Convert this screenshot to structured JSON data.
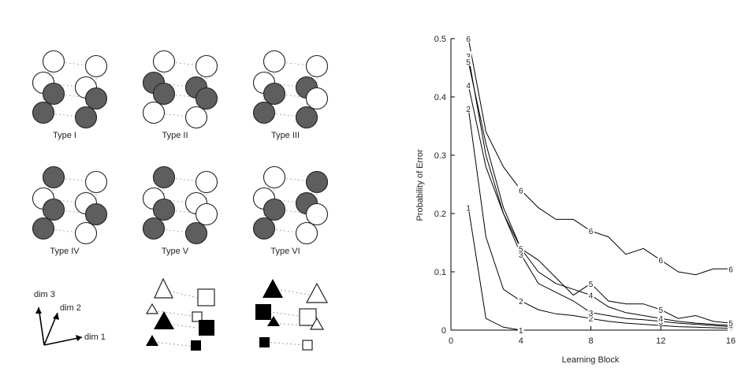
{
  "figure": {
    "type_labels": [
      "Type I",
      "Type II",
      "Type III",
      "Type IV",
      "Type V",
      "Type VI"
    ],
    "type_patterns": [
      [
        0,
        0,
        0,
        0,
        1,
        1,
        1,
        1
      ],
      [
        0,
        0,
        1,
        1,
        1,
        1,
        0,
        0
      ],
      [
        0,
        0,
        0,
        1,
        1,
        0,
        1,
        1
      ],
      [
        1,
        0,
        0,
        0,
        1,
        1,
        1,
        0
      ],
      [
        1,
        0,
        0,
        0,
        1,
        0,
        1,
        1
      ],
      [
        0,
        1,
        0,
        1,
        1,
        0,
        1,
        0
      ]
    ],
    "axes_labels": [
      "dim 1",
      "dim 2",
      "dim 3"
    ],
    "colors": {
      "filled": "#5e5e5e",
      "empty": "#ffffff",
      "stroke": "#222222",
      "solid": "#000000"
    }
  },
  "chart_data": {
    "type": "line",
    "xlabel": "Learning Block",
    "ylabel": "Probability of Error",
    "xlim": [
      0,
      16
    ],
    "ylim": [
      0,
      0.5
    ],
    "xticks": [
      "0",
      "4",
      "8",
      "12",
      "16"
    ],
    "yticks": [
      "0",
      "0.1",
      "0.2",
      "0.3",
      "0.4",
      "0.5"
    ],
    "x": [
      1,
      2,
      3,
      4,
      5,
      6,
      7,
      8,
      9,
      10,
      11,
      12,
      13,
      14,
      15,
      16
    ],
    "series": [
      {
        "name": "1",
        "values": [
          0.21,
          0.02,
          0.005,
          0.0,
          0.0,
          0.0,
          0.0,
          0.0,
          0.0,
          0.0,
          0.0,
          0.0,
          0.0,
          0.0,
          0.0,
          0.0
        ]
      },
      {
        "name": "2",
        "values": [
          0.38,
          0.16,
          0.07,
          0.05,
          0.035,
          0.028,
          0.025,
          0.02,
          0.015,
          0.012,
          0.01,
          0.008,
          0.006,
          0.005,
          0.004,
          0.003
        ]
      },
      {
        "name": "3",
        "values": [
          0.47,
          0.3,
          0.2,
          0.13,
          0.08,
          0.065,
          0.05,
          0.03,
          0.025,
          0.02,
          0.018,
          0.015,
          0.012,
          0.01,
          0.008,
          0.006
        ]
      },
      {
        "name": "4",
        "values": [
          0.42,
          0.28,
          0.2,
          0.14,
          0.1,
          0.08,
          0.07,
          0.06,
          0.04,
          0.03,
          0.025,
          0.02,
          0.015,
          0.012,
          0.01,
          0.008
        ]
      },
      {
        "name": "5",
        "values": [
          0.46,
          0.32,
          0.21,
          0.14,
          0.12,
          0.09,
          0.06,
          0.08,
          0.05,
          0.045,
          0.045,
          0.035,
          0.02,
          0.025,
          0.015,
          0.012
        ]
      },
      {
        "name": "6",
        "values": [
          0.5,
          0.34,
          0.28,
          0.24,
          0.21,
          0.19,
          0.19,
          0.17,
          0.16,
          0.13,
          0.14,
          0.12,
          0.1,
          0.095,
          0.105,
          0.105
        ]
      }
    ],
    "label_positions": {
      "1": [
        1,
        4
      ],
      "2": [
        1,
        4,
        8
      ],
      "3": [
        1,
        4,
        8,
        12,
        16
      ],
      "4": [
        1,
        4,
        8,
        12,
        16
      ],
      "5": [
        1,
        4,
        8,
        12,
        16
      ],
      "6": [
        1,
        4,
        8,
        12,
        16
      ]
    },
    "grid": false,
    "legend": "none"
  }
}
